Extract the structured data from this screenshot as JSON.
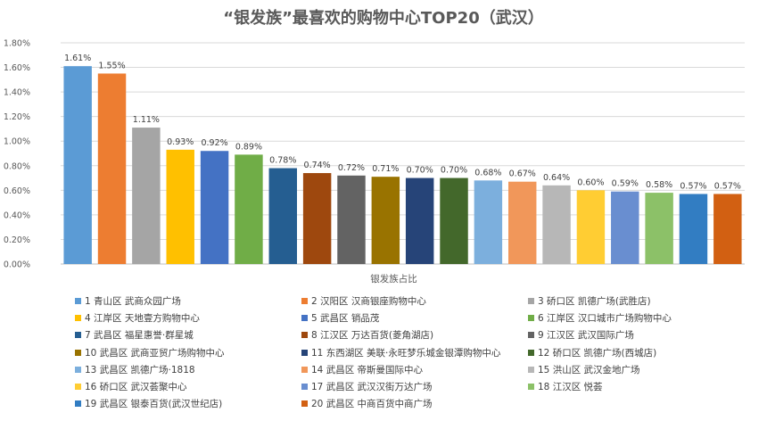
{
  "chart_data": {
    "type": "bar",
    "title": "“银发族”最喜欢的购物中心TOP20（武汉）",
    "xlabel": "银发族占比",
    "ylabel": "",
    "ylim": [
      0,
      1.8
    ],
    "yticks": [
      "0.00%",
      "0.20%",
      "0.40%",
      "0.60%",
      "0.80%",
      "1.00%",
      "1.20%",
      "1.40%",
      "1.60%",
      "1.80%"
    ],
    "grid": true,
    "legend_position": "bottom",
    "series": [
      {
        "name": "1 青山区 武商众园广场",
        "value": 1.61,
        "label": "1.61%",
        "color": "#5B9BD5"
      },
      {
        "name": "2 汉阳区 汉商银座购物中心",
        "value": 1.55,
        "label": "1.55%",
        "color": "#ED7D31"
      },
      {
        "name": "3 硚口区 凯德广场(武胜店)",
        "value": 1.11,
        "label": "1.11%",
        "color": "#A5A5A5"
      },
      {
        "name": "4 江岸区 天地壹方购物中心",
        "value": 0.93,
        "label": "0.93%",
        "color": "#FFC000"
      },
      {
        "name": "5 武昌区 销品茂",
        "value": 0.92,
        "label": "0.92%",
        "color": "#4472C4"
      },
      {
        "name": "6 江岸区 汉口城市广场购物中心",
        "value": 0.89,
        "label": "0.89%",
        "color": "#70AD47"
      },
      {
        "name": "7 武昌区 福星惠誉·群星城",
        "value": 0.78,
        "label": "0.78%",
        "color": "#255E91"
      },
      {
        "name": "8 江汉区 万达百货(菱角湖店)",
        "value": 0.74,
        "label": "0.74%",
        "color": "#9E480E"
      },
      {
        "name": "9 江汉区 武汉国际广场",
        "value": 0.72,
        "label": "0.72%",
        "color": "#636363"
      },
      {
        "name": "10 武昌区 武商亚贸广场购物中心",
        "value": 0.71,
        "label": "0.71%",
        "color": "#997300"
      },
      {
        "name": "11 东西湖区 美联·永旺梦乐城金银潭购物中心",
        "value": 0.7,
        "label": "0.70%",
        "color": "#264478"
      },
      {
        "name": "12 硚口区 凯德广场(西城店)",
        "value": 0.7,
        "label": "0.70%",
        "color": "#43682B"
      },
      {
        "name": "13 武昌区 凯德广场·1818",
        "value": 0.68,
        "label": "0.68%",
        "color": "#7CAFDD"
      },
      {
        "name": "14 武昌区 帝斯曼国际中心",
        "value": 0.67,
        "label": "0.67%",
        "color": "#F1975A"
      },
      {
        "name": "15 洪山区 武汉金地广场",
        "value": 0.64,
        "label": "0.64%",
        "color": "#B7B7B7"
      },
      {
        "name": "16 硚口区 武汉荟聚中心",
        "value": 0.6,
        "label": "0.60%",
        "color": "#FFCD33"
      },
      {
        "name": "17 武昌区 武汉汉街万达广场",
        "value": 0.59,
        "label": "0.59%",
        "color": "#698ED0"
      },
      {
        "name": "18 江汉区 悦荟",
        "value": 0.58,
        "label": "0.58%",
        "color": "#8CC168"
      },
      {
        "name": "19 武昌区 银泰百货(武汉世纪店)",
        "value": 0.57,
        "label": "0.57%",
        "color": "#327DC2"
      },
      {
        "name": "20 武昌区 中商百货中商广场",
        "value": 0.57,
        "label": "0.57%",
        "color": "#D26012"
      }
    ]
  }
}
